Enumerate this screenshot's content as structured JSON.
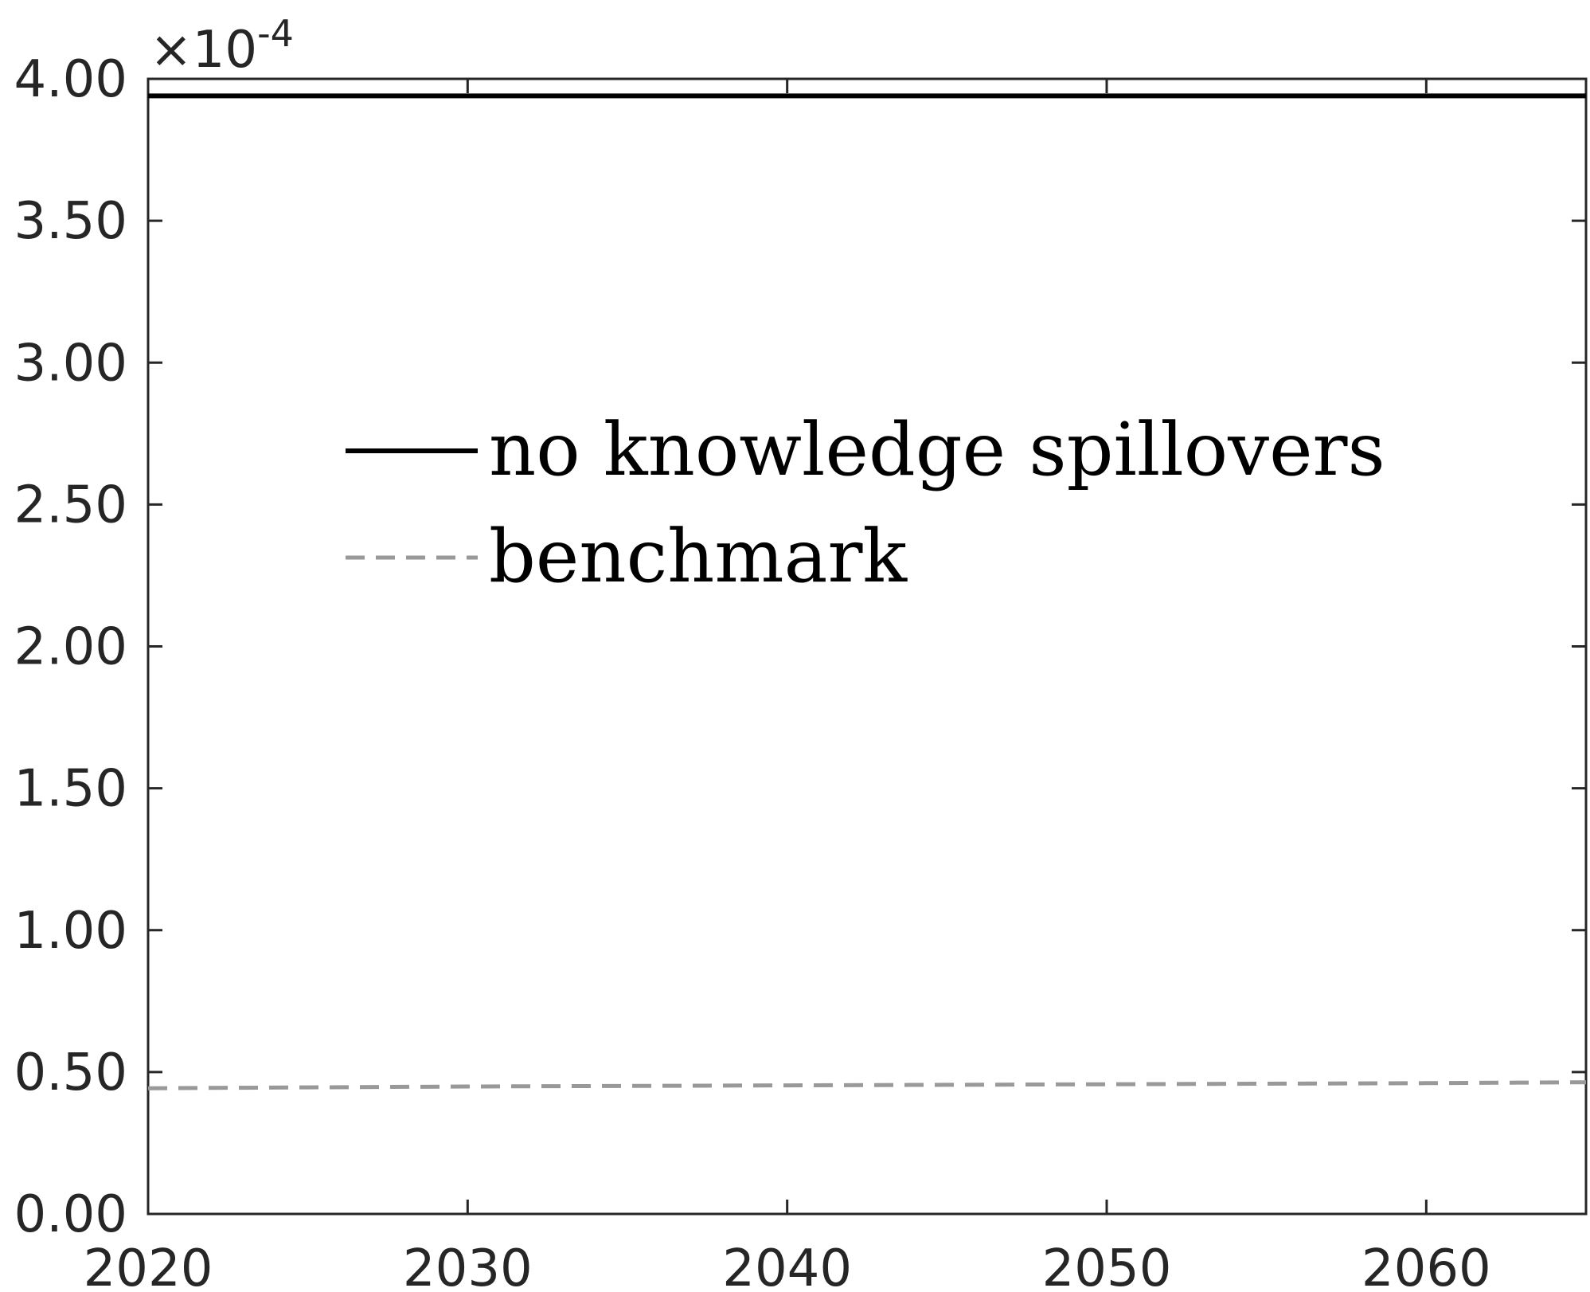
{
  "chart_data": {
    "type": "line",
    "title": "",
    "xlabel": "",
    "ylabel": "",
    "xlim": [
      2020,
      2065
    ],
    "ylim": [
      0,
      4
    ],
    "y_multiplier": {
      "base": "10",
      "exponent": "-4",
      "prefix": "×"
    },
    "x_ticks": [
      2020,
      2030,
      2040,
      2050,
      2060
    ],
    "x_tick_labels": [
      "2020",
      "2030",
      "2040",
      "2050",
      "2060"
    ],
    "y_ticks": [
      0,
      0.5,
      1,
      1.5,
      2,
      2.5,
      3,
      3.5,
      4
    ],
    "y_tick_labels": [
      "0.00",
      "0.50",
      "1.00",
      "1.50",
      "2.00",
      "2.50",
      "3.00",
      "3.50",
      "4.00"
    ],
    "grid": false,
    "box": true,
    "legend": {
      "placement": "upper-center",
      "box": false
    },
    "series": [
      {
        "name": "no knowledge spillovers",
        "color": "#000000",
        "style": "solid",
        "x": [
          2020,
          2025,
          2030,
          2035,
          2040,
          2045,
          2050,
          2055,
          2060,
          2065
        ],
        "y": [
          3.94,
          3.94,
          3.94,
          3.94,
          3.94,
          3.94,
          3.94,
          3.94,
          3.94,
          3.94
        ]
      },
      {
        "name": "benchmark",
        "color": "#999999",
        "style": "dashed",
        "x": [
          2020,
          2025,
          2030,
          2035,
          2040,
          2045,
          2050,
          2055,
          2060,
          2065
        ],
        "y": [
          0.443,
          0.446,
          0.449,
          0.451,
          0.453,
          0.455,
          0.457,
          0.459,
          0.461,
          0.464
        ]
      }
    ]
  }
}
